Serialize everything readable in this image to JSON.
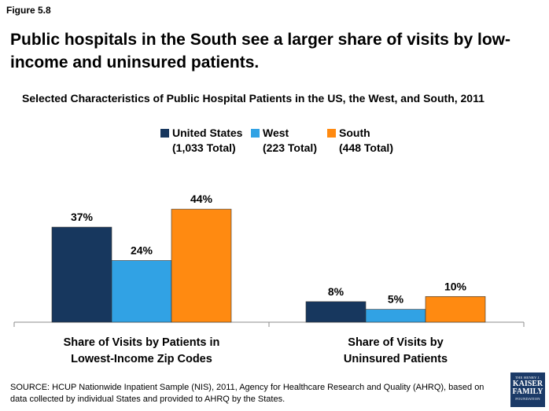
{
  "figure_label": "Figure 5.8",
  "title": "Public hospitals in the South see a larger share of visits by low-income and uninsured patients.",
  "source": "SOURCE: HCUP Nationwide Inpatient Sample (NIS), 2011, Agency for Healthcare Research and Quality (AHRQ), based on data collected by individual States and provided to AHRQ by the States.",
  "logo": {
    "line1": "THE HENRY J.",
    "line2": "KAISER",
    "line3": "FAMILY",
    "line4": "FOUNDATION"
  },
  "chart_data": {
    "type": "bar",
    "title": "Selected Characteristics of Public Hospital Patients in the US, the West, and South, 2011",
    "categories": [
      "Share of Visits by Patients in Lowest-Income Zip Codes",
      "Share of Visits by Uninsured Patients"
    ],
    "category_lines": [
      [
        "Share of Visits by Patients in",
        "Lowest-Income Zip Codes"
      ],
      [
        "Share of Visits by",
        "Uninsured Patients"
      ]
    ],
    "series": [
      {
        "name": "United States",
        "total": "(1,033 Total)",
        "color": "#17375e",
        "values": [
          37,
          8
        ],
        "labels": [
          "37%",
          "8%"
        ]
      },
      {
        "name": "West",
        "total": "(223 Total)",
        "color": "#31a2e4",
        "values": [
          24,
          5
        ],
        "labels": [
          "24%",
          "5%"
        ]
      },
      {
        "name": "South",
        "total": "(448 Total)",
        "color": "#ff8a11",
        "values": [
          44,
          10
        ],
        "labels": [
          "44%",
          "10%"
        ]
      }
    ],
    "ylim": [
      0,
      50
    ],
    "grid": false,
    "legend_position": "top-center",
    "xlabel": "",
    "ylabel": ""
  }
}
